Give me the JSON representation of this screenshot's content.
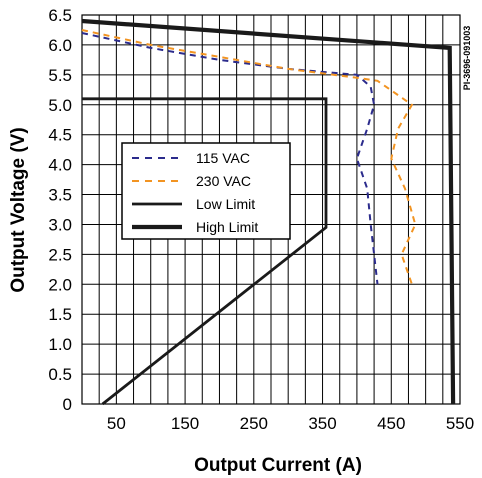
{
  "chart_data": {
    "type": "line",
    "xlabel": "Output Current (A)",
    "ylabel": "Output Voltage (V)",
    "figure_code": "PI-3696-091003",
    "xlim": [
      0,
      550
    ],
    "ylim": [
      0,
      6.5
    ],
    "xticks": [
      50,
      150,
      250,
      350,
      450,
      550
    ],
    "yticks": [
      "0",
      "0.5",
      "1.0",
      "1.5",
      "2.0",
      "2.5",
      "3.0",
      "3.5",
      "4.0",
      "4.5",
      "5.0",
      "5.5",
      "6.0",
      "6.5"
    ],
    "grid": true,
    "legend_position": "center-left",
    "series": [
      {
        "name": "115 VAC",
        "style": "dashed",
        "color": "#2b2b8c",
        "points": [
          [
            0,
            6.2
          ],
          [
            100,
            5.95
          ],
          [
            200,
            5.75
          ],
          [
            300,
            5.6
          ],
          [
            400,
            5.5
          ],
          [
            420,
            5.3
          ],
          [
            425,
            5.0
          ],
          [
            415,
            4.6
          ],
          [
            400,
            4.1
          ],
          [
            415,
            3.6
          ],
          [
            420,
            3.0
          ],
          [
            425,
            2.5
          ],
          [
            430,
            2.0
          ]
        ]
      },
      {
        "name": "230 VAC",
        "style": "dashed",
        "color": "#f29422",
        "points": [
          [
            0,
            6.25
          ],
          [
            100,
            6.0
          ],
          [
            200,
            5.8
          ],
          [
            300,
            5.6
          ],
          [
            400,
            5.45
          ],
          [
            430,
            5.4
          ],
          [
            480,
            5.0
          ],
          [
            460,
            4.6
          ],
          [
            450,
            4.1
          ],
          [
            470,
            3.6
          ],
          [
            485,
            3.0
          ],
          [
            465,
            2.5
          ],
          [
            480,
            2.0
          ]
        ]
      },
      {
        "name": "Low Limit",
        "style": "solid",
        "color": "#1a1a1a",
        "points": [
          [
            0,
            5.1
          ],
          [
            355,
            5.1
          ],
          [
            355,
            2.95
          ],
          [
            30,
            0
          ]
        ]
      },
      {
        "name": "High Limit",
        "style": "solid",
        "color": "#1a1a1a",
        "points": [
          [
            0,
            6.4
          ],
          [
            535,
            5.95
          ],
          [
            540,
            0
          ]
        ]
      }
    ]
  }
}
